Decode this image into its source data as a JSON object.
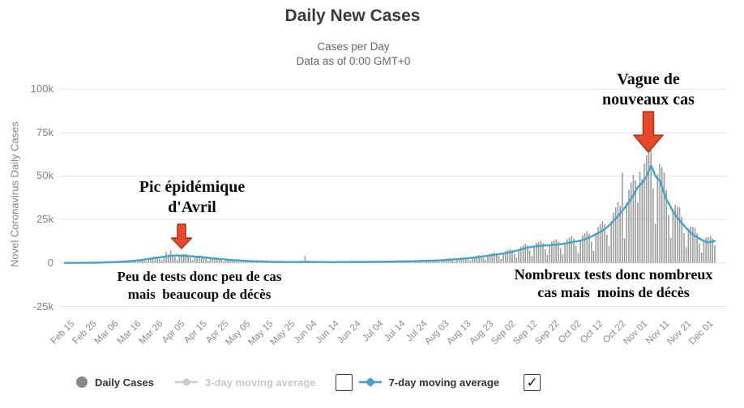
{
  "colors": {
    "accent_blue": "#42a4c8",
    "bar_gray": "#9b9b9b",
    "grid": "#e6e6e6",
    "marker_gray": "#8a8a8a",
    "disabled_gray": "#cccccc",
    "arrow_fill": "#e8492b",
    "arrow_stroke": "#aa3315",
    "title_color": "#3a3a3a",
    "subtitle_color": "#666666",
    "tick_color": "#8a8a8a"
  },
  "legend": {
    "checkbox_left_checked": false,
    "checkbox_right_checked": true,
    "check_glyph": "✓"
  },
  "chart_data": {
    "type": "bar+line",
    "title": "Daily New Cases",
    "subtitle_line1": "Cases per Day",
    "subtitle_line2": "Data as of 0:00 GMT+0",
    "ylabel": "Novel Coronavirus Daily Cases",
    "xlabel": "",
    "ylim_k": [
      -25,
      100
    ],
    "grid": true,
    "legend_position": "bottom",
    "y_ticks": [
      {
        "label": "100k",
        "value_k": 100
      },
      {
        "label": "75k",
        "value_k": 75
      },
      {
        "label": "50k",
        "value_k": 50
      },
      {
        "label": "25k",
        "value_k": 25
      },
      {
        "label": "0",
        "value_k": 0
      },
      {
        "label": "-25k",
        "value_k": -25
      }
    ],
    "x_tick_labels": [
      "Feb 15",
      "Feb 25",
      "Mar 06",
      "Mar 16",
      "Mar 26",
      "Apr 05",
      "Apr 15",
      "Apr 25",
      "May 05",
      "May 15",
      "May 25",
      "Jun 04",
      "Jun 14",
      "Jun 24",
      "Jul 04",
      "Jul 14",
      "Jul 24",
      "Aug 03",
      "Aug 13",
      "Aug 23",
      "Sep 02",
      "Sep 12",
      "Sep 22",
      "Oct 02",
      "Oct 12",
      "Oct 22",
      "Nov 01",
      "Nov 11",
      "Nov 21",
      "Dec 01"
    ],
    "tick_interval_days": 10,
    "total_days": 296,
    "start_weekday": "Saturday",
    "series": [
      {
        "name": "Daily Cases",
        "type": "bar",
        "color": "#9b9b9b",
        "visible": true
      },
      {
        "name": "3-day moving average",
        "type": "line",
        "color": "#cccccc",
        "visible": false
      },
      {
        "name": "7-day moving average",
        "type": "line",
        "color": "#42a4c8",
        "visible": true
      }
    ],
    "avg7_control_points_k": [
      [
        0,
        0.05
      ],
      [
        8,
        0.07
      ],
      [
        12,
        0.1
      ],
      [
        16,
        0.2
      ],
      [
        20,
        0.35
      ],
      [
        24,
        0.55
      ],
      [
        28,
        0.85
      ],
      [
        32,
        1.3
      ],
      [
        36,
        1.9
      ],
      [
        40,
        2.7
      ],
      [
        43,
        3.2
      ],
      [
        45,
        3.6
      ],
      [
        48,
        4.1
      ],
      [
        51,
        4.3
      ],
      [
        54,
        4.1
      ],
      [
        57,
        3.9
      ],
      [
        60,
        3.6
      ],
      [
        63,
        3.2
      ],
      [
        66,
        2.8
      ],
      [
        70,
        2.3
      ],
      [
        74,
        1.85
      ],
      [
        78,
        1.5
      ],
      [
        82,
        1.2
      ],
      [
        86,
        0.95
      ],
      [
        90,
        0.8
      ],
      [
        94,
        0.65
      ],
      [
        98,
        0.55
      ],
      [
        103,
        0.5
      ],
      [
        107,
        0.55
      ],
      [
        110,
        0.6
      ],
      [
        114,
        0.55
      ],
      [
        118,
        0.5
      ],
      [
        122,
        0.48
      ],
      [
        126,
        0.5
      ],
      [
        130,
        0.55
      ],
      [
        134,
        0.58
      ],
      [
        138,
        0.62
      ],
      [
        142,
        0.68
      ],
      [
        146,
        0.72
      ],
      [
        150,
        0.78
      ],
      [
        154,
        0.88
      ],
      [
        158,
        1.0
      ],
      [
        162,
        1.15
      ],
      [
        166,
        1.3
      ],
      [
        170,
        1.5
      ],
      [
        174,
        1.85
      ],
      [
        178,
        2.2
      ],
      [
        182,
        2.6
      ],
      [
        186,
        3.1
      ],
      [
        190,
        3.8
      ],
      [
        194,
        4.5
      ],
      [
        198,
        5.2
      ],
      [
        202,
        6.1
      ],
      [
        206,
        7.4
      ],
      [
        210,
        8.8
      ],
      [
        214,
        9.6
      ],
      [
        218,
        10.0
      ],
      [
        222,
        10.4
      ],
      [
        226,
        10.9
      ],
      [
        230,
        11.9
      ],
      [
        234,
        12.8
      ],
      [
        238,
        14.5
      ],
      [
        241,
        16.5
      ],
      [
        244,
        18.5
      ],
      [
        247,
        21.5
      ],
      [
        250,
        25.5
      ],
      [
        252,
        28.5
      ],
      [
        254,
        31.5
      ],
      [
        256,
        35
      ],
      [
        258,
        39
      ],
      [
        260,
        43.5
      ],
      [
        262,
        46
      ],
      [
        264,
        49.5
      ],
      [
        266,
        56
      ],
      [
        267,
        53.5
      ],
      [
        268,
        50
      ],
      [
        269,
        48.5
      ],
      [
        270,
        47.5
      ],
      [
        271,
        44
      ],
      [
        272,
        40
      ],
      [
        273,
        36.5
      ],
      [
        274,
        34.5
      ],
      [
        276,
        29.5
      ],
      [
        278,
        26
      ],
      [
        280,
        23
      ],
      [
        282,
        20
      ],
      [
        284,
        17.5
      ],
      [
        286,
        15.5
      ],
      [
        288,
        14
      ],
      [
        290,
        12.6
      ],
      [
        292,
        11.8
      ],
      [
        295,
        12.6
      ]
    ],
    "bar_weekday_factors": [
      1.15,
      0.8,
      0.45,
      1.05,
      1.2,
      1.25,
      1.3
    ],
    "bar_overrides_k": {
      "46": 6.3,
      "48": 7.2,
      "109": 3.9,
      "253": 52.0,
      "261": 52.5,
      "266": 86.8
    },
    "peak_daily_bar_k": 86.8,
    "peak_avg7_k": 56,
    "april_peak_avg7_k": 4.3,
    "annotations": {
      "april_peak": {
        "line1": "Pic épidémique",
        "line2": "d'Avril"
      },
      "april_note": {
        "line1": "Peu de tests donc peu de cas",
        "line2": "mais  beaucoup de décès"
      },
      "nov_wave": {
        "line1": "Vague de",
        "line2": "nouveaux cas"
      },
      "nov_note": {
        "line1": "Nombreux tests donc nombreux",
        "line2": "cas mais  moins de décès"
      }
    }
  }
}
